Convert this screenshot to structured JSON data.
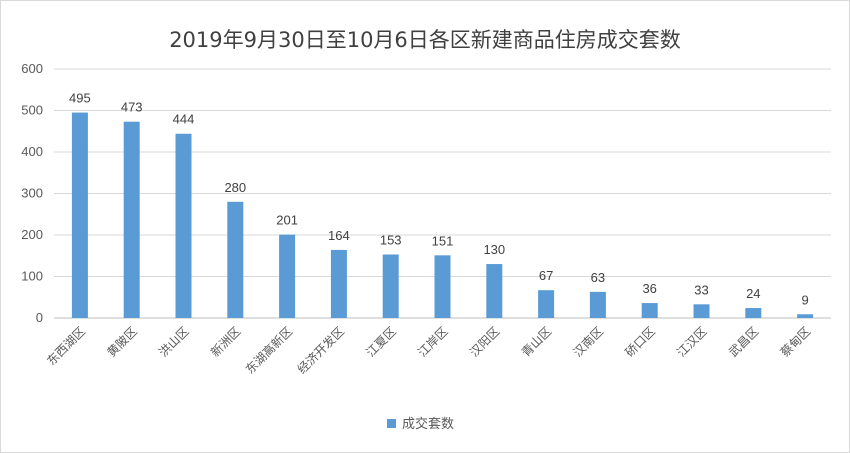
{
  "chart_data": {
    "type": "bar",
    "title": "2019年9月30日至10月6日各区新建商品住房成交套数",
    "categories": [
      "东西湖区",
      "黄陂区",
      "洪山区",
      "新洲区",
      "东湖高新区",
      "经济开发区",
      "江夏区",
      "江岸区",
      "汉阳区",
      "青山区",
      "汉南区",
      "硚口区",
      "江汉区",
      "武昌区",
      "蔡甸区"
    ],
    "series": [
      {
        "name": "成交套数",
        "values": [
          495,
          473,
          444,
          280,
          201,
          164,
          153,
          151,
          130,
          67,
          63,
          36,
          33,
          24,
          9
        ]
      }
    ],
    "ylim": [
      0,
      600
    ],
    "yticks": [
      "0",
      "100",
      "200",
      "300",
      "400",
      "500",
      "600"
    ],
    "grid": true,
    "legend_position": "bottom",
    "data_labels": true,
    "colors": {
      "bar": "#5b9bd5",
      "grid": "#d9d9d9",
      "axis": "#bfbfbf"
    }
  }
}
